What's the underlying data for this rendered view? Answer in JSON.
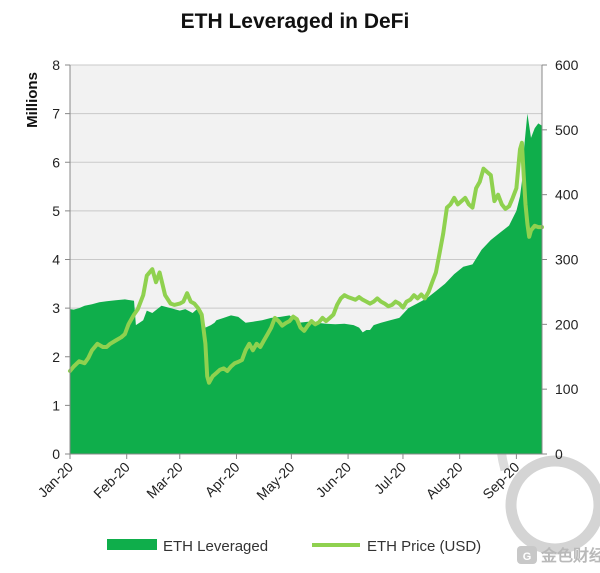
{
  "colors": {
    "area": "#0fae4b",
    "price": "#8fd14f",
    "plot_bg": "#f2f2f2",
    "grid": "#c9c9c9",
    "axis": "#888888"
  },
  "watermark": {
    "text": "金色财经",
    "icon": "golden-finance-logo-icon"
  },
  "chart_data": {
    "type": "area",
    "title": "ETH Leveraged in DeFi",
    "ylabel": "Millions",
    "y2label": "",
    "ylim": [
      0,
      8
    ],
    "y2lim": [
      0,
      600
    ],
    "yticks": [
      "0",
      "1",
      "2",
      "3",
      "4",
      "5",
      "6",
      "7",
      "8"
    ],
    "y2ticks": [
      "0",
      "100",
      "200",
      "300",
      "400",
      "500",
      "600"
    ],
    "xlim": [
      0,
      258
    ],
    "xticks": [
      {
        "label": "Jan-20",
        "day": 0
      },
      {
        "label": "Feb-20",
        "day": 31
      },
      {
        "label": "Mar-20",
        "day": 60
      },
      {
        "label": "Apr-20",
        "day": 91
      },
      {
        "label": "May-20",
        "day": 121
      },
      {
        "label": "Jun-20",
        "day": 152
      },
      {
        "label": "Jul-20",
        "day": 182
      },
      {
        "label": "Aug-20",
        "day": 213
      },
      {
        "label": "Sep-20",
        "day": 244
      }
    ],
    "series": [
      {
        "name": "ETH Leveraged",
        "kind": "area",
        "axis": "left",
        "x": [
          0,
          2,
          5,
          8,
          12,
          16,
          20,
          25,
          30,
          35,
          36,
          38,
          40,
          42,
          45,
          50,
          55,
          60,
          63,
          67,
          70,
          72,
          74,
          77,
          79,
          80,
          84,
          88,
          92,
          96,
          100,
          105,
          110,
          115,
          120,
          125,
          130,
          135,
          140,
          145,
          150,
          155,
          158,
          160,
          162,
          164,
          166,
          170,
          175,
          180,
          185,
          190,
          195,
          200,
          205,
          210,
          215,
          220,
          225,
          230,
          235,
          240,
          244,
          246,
          247,
          248,
          249,
          250,
          252,
          254,
          256,
          258
        ],
        "values": [
          2.98,
          2.97,
          3.0,
          3.05,
          3.08,
          3.12,
          3.14,
          3.16,
          3.18,
          3.15,
          2.65,
          2.7,
          2.75,
          2.95,
          2.9,
          3.05,
          3.0,
          2.95,
          2.98,
          2.9,
          3.0,
          2.95,
          2.6,
          2.65,
          2.7,
          2.75,
          2.8,
          2.85,
          2.82,
          2.7,
          2.72,
          2.75,
          2.8,
          2.82,
          2.85,
          2.7,
          2.72,
          2.7,
          2.68,
          2.67,
          2.68,
          2.65,
          2.6,
          2.5,
          2.55,
          2.55,
          2.65,
          2.7,
          2.75,
          2.8,
          3.0,
          3.1,
          3.2,
          3.35,
          3.5,
          3.7,
          3.85,
          3.9,
          4.2,
          4.4,
          4.55,
          4.7,
          5.0,
          5.3,
          5.6,
          6.2,
          6.6,
          7.0,
          6.5,
          6.7,
          6.8,
          6.75
        ]
      },
      {
        "name": "ETH Price (USD)",
        "kind": "line",
        "axis": "right",
        "x": [
          0,
          2,
          5,
          8,
          10,
          12,
          15,
          18,
          20,
          22,
          25,
          28,
          30,
          32,
          35,
          37,
          40,
          42,
          45,
          47,
          49,
          50,
          52,
          55,
          57,
          60,
          62,
          64,
          66,
          68,
          70,
          72,
          74,
          75,
          76,
          77,
          78,
          80,
          82,
          84,
          86,
          88,
          90,
          92,
          94,
          96,
          98,
          100,
          102,
          104,
          106,
          108,
          110,
          112,
          114,
          116,
          118,
          120,
          122,
          124,
          126,
          128,
          130,
          132,
          134,
          136,
          138,
          140,
          142,
          144,
          146,
          148,
          150,
          152,
          154,
          156,
          158,
          160,
          162,
          164,
          166,
          168,
          170,
          172,
          174,
          176,
          178,
          180,
          182,
          184,
          186,
          188,
          190,
          192,
          194,
          196,
          198,
          200,
          202,
          204,
          206,
          208,
          210,
          212,
          214,
          216,
          218,
          220,
          222,
          224,
          226,
          228,
          230,
          232,
          234,
          236,
          238,
          240,
          242,
          244,
          245,
          246,
          247,
          248,
          249,
          250,
          251,
          252,
          254,
          256,
          258
        ],
        "values": [
          128,
          135,
          143,
          140,
          148,
          160,
          170,
          165,
          165,
          170,
          175,
          180,
          185,
          200,
          215,
          223,
          245,
          275,
          285,
          265,
          280,
          268,
          245,
          232,
          230,
          232,
          235,
          248,
          235,
          232,
          225,
          215,
          170,
          120,
          110,
          115,
          120,
          125,
          130,
          132,
          128,
          135,
          140,
          142,
          145,
          160,
          170,
          160,
          170,
          165,
          175,
          185,
          195,
          210,
          205,
          198,
          202,
          205,
          212,
          208,
          195,
          190,
          198,
          205,
          200,
          203,
          210,
          205,
          210,
          215,
          230,
          240,
          245,
          242,
          240,
          238,
          242,
          238,
          235,
          232,
          235,
          240,
          235,
          232,
          228,
          230,
          235,
          232,
          226,
          235,
          238,
          245,
          240,
          246,
          240,
          250,
          265,
          280,
          310,
          340,
          380,
          385,
          395,
          385,
          390,
          395,
          385,
          380,
          410,
          420,
          440,
          435,
          430,
          390,
          400,
          385,
          378,
          382,
          395,
          410,
          440,
          470,
          480,
          430,
          385,
          355,
          335,
          345,
          352,
          350,
          350
        ]
      }
    ]
  }
}
